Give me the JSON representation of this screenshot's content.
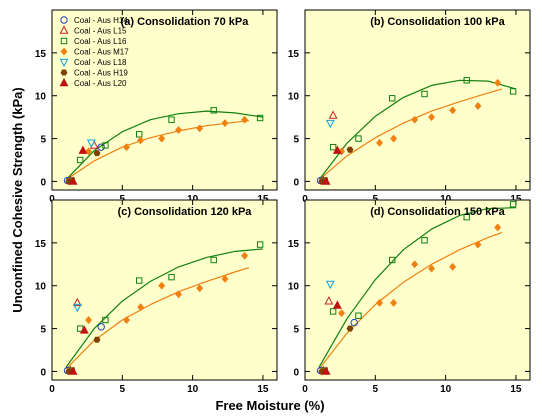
{
  "figure": {
    "ylabel": "Unconfined Cohesive Strength (kPa)",
    "xlabel": "Free Moisture (%)"
  },
  "legend": [
    {
      "name": "Coal - Aus H14",
      "marker": "circle-open",
      "color": "#2040c0"
    },
    {
      "name": "Coal - Aus L15",
      "marker": "triangle-up-open",
      "color": "#c02020"
    },
    {
      "name": "Coal - Aus L16",
      "marker": "square-open",
      "color": "#108010"
    },
    {
      "name": "Coal - Aus M17",
      "marker": "diamond-filled",
      "color": "#f08010"
    },
    {
      "name": "Coal - Aus L18",
      "marker": "triangle-down-open",
      "color": "#10a0e0"
    },
    {
      "name": "Coal - Aus H19",
      "marker": "hexagon-filled",
      "color": "#804000"
    },
    {
      "name": "Coal - Aus L20",
      "marker": "triangle-up-filled",
      "color": "#c01010"
    }
  ],
  "colors": {
    "plot_bg": "#ffffcc",
    "l16_fit": "#108010",
    "m17_fit": "#f08010"
  },
  "chart_data": [
    {
      "type": "scatter",
      "title": "(a) Consolidation 70 kPa",
      "xlim": [
        0,
        16
      ],
      "ylim": [
        -1,
        20
      ],
      "xticks": [
        0,
        5,
        10,
        15
      ],
      "yticks": [
        0,
        5,
        10,
        15
      ],
      "series": [
        {
          "name": "Coal - Aus H14",
          "points": [
            [
              1.1,
              0.1
            ],
            [
              3.5,
              4.0
            ]
          ]
        },
        {
          "name": "Coal - Aus L15",
          "points": [
            [
              1.3,
              0.1
            ],
            [
              3.0,
              4.2
            ]
          ]
        },
        {
          "name": "Coal - Aus L16",
          "points": [
            [
              1.4,
              0.1
            ],
            [
              2.0,
              2.5
            ],
            [
              3.8,
              4.2
            ],
            [
              6.2,
              5.5
            ],
            [
              8.5,
              7.2
            ],
            [
              11.5,
              8.3
            ],
            [
              14.8,
              7.4
            ]
          ]
        },
        {
          "name": "Coal - Aus M17",
          "points": [
            [
              1.2,
              0.0
            ],
            [
              2.6,
              3.5
            ],
            [
              5.3,
              4.0
            ],
            [
              6.3,
              4.8
            ],
            [
              7.8,
              5.0
            ],
            [
              9.0,
              6.0
            ],
            [
              10.5,
              6.2
            ],
            [
              12.3,
              6.8
            ],
            [
              13.7,
              7.2
            ]
          ]
        },
        {
          "name": "Coal - Aus L18",
          "points": [
            [
              2.8,
              4.5
            ]
          ]
        },
        {
          "name": "Coal - Aus H19",
          "points": [
            [
              1.2,
              0.0
            ],
            [
              3.2,
              3.3
            ]
          ]
        },
        {
          "name": "Coal - Aus L20",
          "points": [
            [
              1.5,
              0.0
            ],
            [
              2.2,
              3.6
            ]
          ]
        }
      ],
      "fits": [
        {
          "series": "Coal - Aus L16",
          "x": [
            1.0,
            3,
            5,
            7,
            9,
            11,
            13,
            15
          ],
          "y": [
            0.2,
            3.6,
            5.8,
            7.2,
            7.9,
            8.2,
            8.0,
            7.5
          ]
        },
        {
          "series": "Coal - Aus M17",
          "x": [
            1.0,
            3,
            5,
            7,
            9,
            11,
            13,
            14
          ],
          "y": [
            0.2,
            2.4,
            4.0,
            5.1,
            5.9,
            6.5,
            6.9,
            7.1
          ]
        }
      ]
    },
    {
      "type": "scatter",
      "title": "(b) Consolidation 100 kPa",
      "xlim": [
        0,
        16
      ],
      "ylim": [
        -1,
        20
      ],
      "xticks": [
        0,
        5,
        10,
        15
      ],
      "yticks": [
        0,
        5,
        10,
        15
      ],
      "series": [
        {
          "name": "Coal - Aus H14",
          "points": [
            [
              1.1,
              0.1
            ]
          ]
        },
        {
          "name": "Coal - Aus L15",
          "points": [
            [
              1.3,
              0.1
            ],
            [
              2.0,
              7.7
            ]
          ]
        },
        {
          "name": "Coal - Aus L16",
          "points": [
            [
              1.4,
              0.1
            ],
            [
              2.0,
              4.0
            ],
            [
              3.8,
              5.0
            ],
            [
              6.2,
              9.7
            ],
            [
              8.5,
              10.2
            ],
            [
              11.5,
              11.8
            ],
            [
              14.8,
              10.5
            ]
          ]
        },
        {
          "name": "Coal - Aus M17",
          "points": [
            [
              1.2,
              0.0
            ],
            [
              2.6,
              3.5
            ],
            [
              5.3,
              4.5
            ],
            [
              6.3,
              5.0
            ],
            [
              7.8,
              7.2
            ],
            [
              9.0,
              7.5
            ],
            [
              10.5,
              8.3
            ],
            [
              12.3,
              8.8
            ],
            [
              13.7,
              11.5
            ]
          ]
        },
        {
          "name": "Coal - Aus L18",
          "points": [
            [
              1.8,
              6.8
            ]
          ]
        },
        {
          "name": "Coal - Aus H19",
          "points": [
            [
              1.2,
              0.0
            ],
            [
              3.2,
              3.7
            ]
          ]
        },
        {
          "name": "Coal - Aus L20",
          "points": [
            [
              1.5,
              0.0
            ],
            [
              2.3,
              3.6
            ]
          ]
        }
      ],
      "fits": [
        {
          "series": "Coal - Aus L16",
          "x": [
            1.0,
            3,
            5,
            7,
            9,
            11,
            13,
            15
          ],
          "y": [
            0.2,
            4.5,
            7.6,
            9.8,
            11.2,
            11.8,
            11.7,
            10.8
          ]
        },
        {
          "series": "Coal - Aus M17",
          "x": [
            1.0,
            3,
            5,
            7,
            9,
            11,
            13,
            14
          ],
          "y": [
            0.2,
            3.0,
            5.1,
            6.8,
            8.2,
            9.3,
            10.3,
            10.8
          ]
        }
      ]
    },
    {
      "type": "scatter",
      "title": "(c) Consolidation 120 kPa",
      "xlim": [
        0,
        16
      ],
      "ylim": [
        -1,
        20
      ],
      "xticks": [
        0,
        5,
        10,
        15
      ],
      "yticks": [
        0,
        5,
        10,
        15
      ],
      "series": [
        {
          "name": "Coal - Aus H14",
          "points": [
            [
              1.1,
              0.1
            ],
            [
              3.5,
              5.2
            ]
          ]
        },
        {
          "name": "Coal - Aus L15",
          "points": [
            [
              1.3,
              0.1
            ],
            [
              1.8,
              8.0
            ]
          ]
        },
        {
          "name": "Coal - Aus L16",
          "points": [
            [
              1.4,
              0.1
            ],
            [
              2.0,
              5.0
            ],
            [
              3.8,
              6.0
            ],
            [
              6.2,
              10.6
            ],
            [
              8.5,
              11.0
            ],
            [
              11.5,
              13.0
            ],
            [
              14.8,
              14.8
            ]
          ]
        },
        {
          "name": "Coal - Aus M17",
          "points": [
            [
              1.2,
              0.0
            ],
            [
              2.6,
              6.0
            ],
            [
              5.3,
              6.0
            ],
            [
              6.3,
              7.5
            ],
            [
              7.8,
              10.0
            ],
            [
              9.0,
              9.0
            ],
            [
              10.5,
              9.7
            ],
            [
              12.3,
              10.8
            ],
            [
              13.7,
              13.5
            ]
          ]
        },
        {
          "name": "Coal - Aus L18",
          "points": [
            [
              1.8,
              7.5
            ]
          ]
        },
        {
          "name": "Coal - Aus H19",
          "points": [
            [
              1.2,
              0.0
            ],
            [
              3.2,
              3.7
            ]
          ]
        },
        {
          "name": "Coal - Aus L20",
          "points": [
            [
              1.5,
              0.0
            ],
            [
              2.3,
              4.8
            ]
          ]
        }
      ],
      "fits": [
        {
          "series": "Coal - Aus L16",
          "x": [
            1.0,
            3,
            5,
            7,
            9,
            11,
            13,
            15
          ],
          "y": [
            0.5,
            5.0,
            8.2,
            10.5,
            12.2,
            13.3,
            14.0,
            14.3
          ]
        },
        {
          "series": "Coal - Aus M17",
          "x": [
            1.0,
            3,
            5,
            7,
            9,
            11,
            13,
            14
          ],
          "y": [
            0.3,
            3.6,
            6.0,
            7.8,
            9.3,
            10.5,
            11.6,
            12.1
          ]
        }
      ]
    },
    {
      "type": "scatter",
      "title": "(d) Consolidation 150 kPa",
      "xlim": [
        0,
        16
      ],
      "ylim": [
        -1,
        20
      ],
      "xticks": [
        0,
        5,
        10,
        15
      ],
      "yticks": [
        0,
        5,
        10,
        15
      ],
      "series": [
        {
          "name": "Coal - Aus H14",
          "points": [
            [
              1.1,
              0.1
            ],
            [
              3.5,
              5.7
            ]
          ]
        },
        {
          "name": "Coal - Aus L15",
          "points": [
            [
              1.3,
              0.1
            ],
            [
              1.7,
              8.2
            ]
          ]
        },
        {
          "name": "Coal - Aus L16",
          "points": [
            [
              1.4,
              0.1
            ],
            [
              2.0,
              7.0
            ],
            [
              3.8,
              6.5
            ],
            [
              6.2,
              13.0
            ],
            [
              8.5,
              15.3
            ],
            [
              11.5,
              18.0
            ],
            [
              14.8,
              19.5
            ]
          ]
        },
        {
          "name": "Coal - Aus M17",
          "points": [
            [
              1.2,
              0.0
            ],
            [
              2.6,
              6.8
            ],
            [
              5.3,
              8.0
            ],
            [
              6.3,
              8.0
            ],
            [
              7.8,
              12.5
            ],
            [
              9.0,
              12.0
            ],
            [
              10.5,
              12.2
            ],
            [
              12.3,
              14.8
            ],
            [
              13.7,
              16.8
            ]
          ]
        },
        {
          "name": "Coal - Aus L18",
          "points": [
            [
              1.8,
              10.2
            ]
          ]
        },
        {
          "name": "Coal - Aus H19",
          "points": [
            [
              1.2,
              0.0
            ],
            [
              3.2,
              5.0
            ]
          ]
        },
        {
          "name": "Coal - Aus L20",
          "points": [
            [
              1.5,
              0.0
            ],
            [
              2.3,
              7.7
            ]
          ]
        }
      ],
      "fits": [
        {
          "series": "Coal - Aus L16",
          "x": [
            1.0,
            3,
            5,
            7,
            9,
            11,
            13,
            15
          ],
          "y": [
            0.5,
            6.2,
            10.7,
            14.2,
            16.6,
            18.2,
            19.0,
            19.1
          ]
        },
        {
          "series": "Coal - Aus M17",
          "x": [
            1.0,
            3,
            5,
            7,
            9,
            11,
            13,
            14
          ],
          "y": [
            0.3,
            4.5,
            7.8,
            10.4,
            12.5,
            14.2,
            15.6,
            16.2
          ]
        }
      ]
    }
  ]
}
